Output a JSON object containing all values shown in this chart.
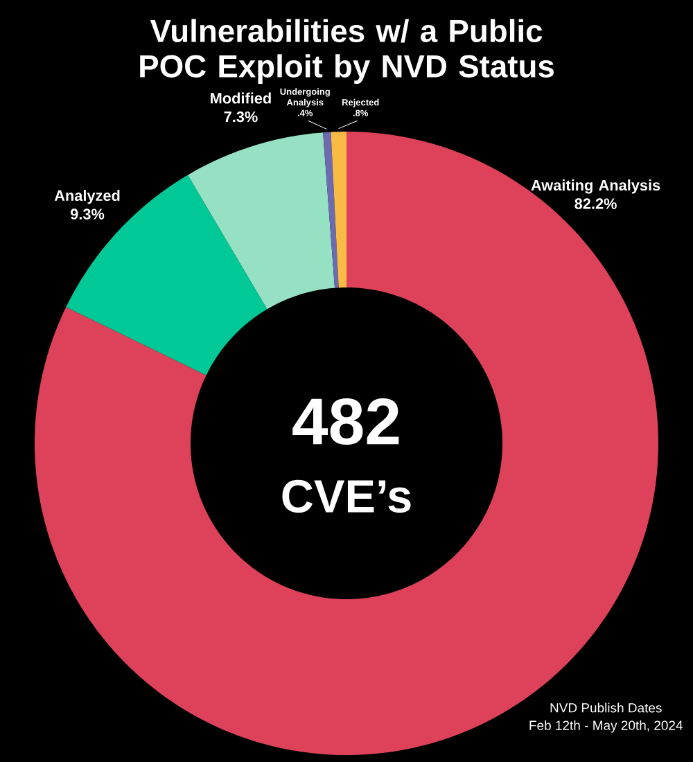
{
  "chart_data": {
    "type": "donut",
    "title": "Vulnerabilities w/ a Public POC Exploit by NVD Status",
    "categories": [
      "Awaiting Analysis",
      "Analyzed",
      "Modified",
      "Undergoing Analysis",
      "Rejected"
    ],
    "values": [
      82.2,
      9.3,
      7.3,
      0.4,
      0.8
    ],
    "colors": [
      "#de425b",
      "#00c896",
      "#96e0c4",
      "#6c6ab0",
      "#f9bb45"
    ],
    "value_labels": [
      "82.2%",
      "9.3%",
      "7.3%",
      ".4%",
      ".8%"
    ],
    "annotations": [
      "482",
      "CVE’s",
      "NVD Publish Dates",
      "Feb 12th - May 20th, 2024"
    ]
  }
}
